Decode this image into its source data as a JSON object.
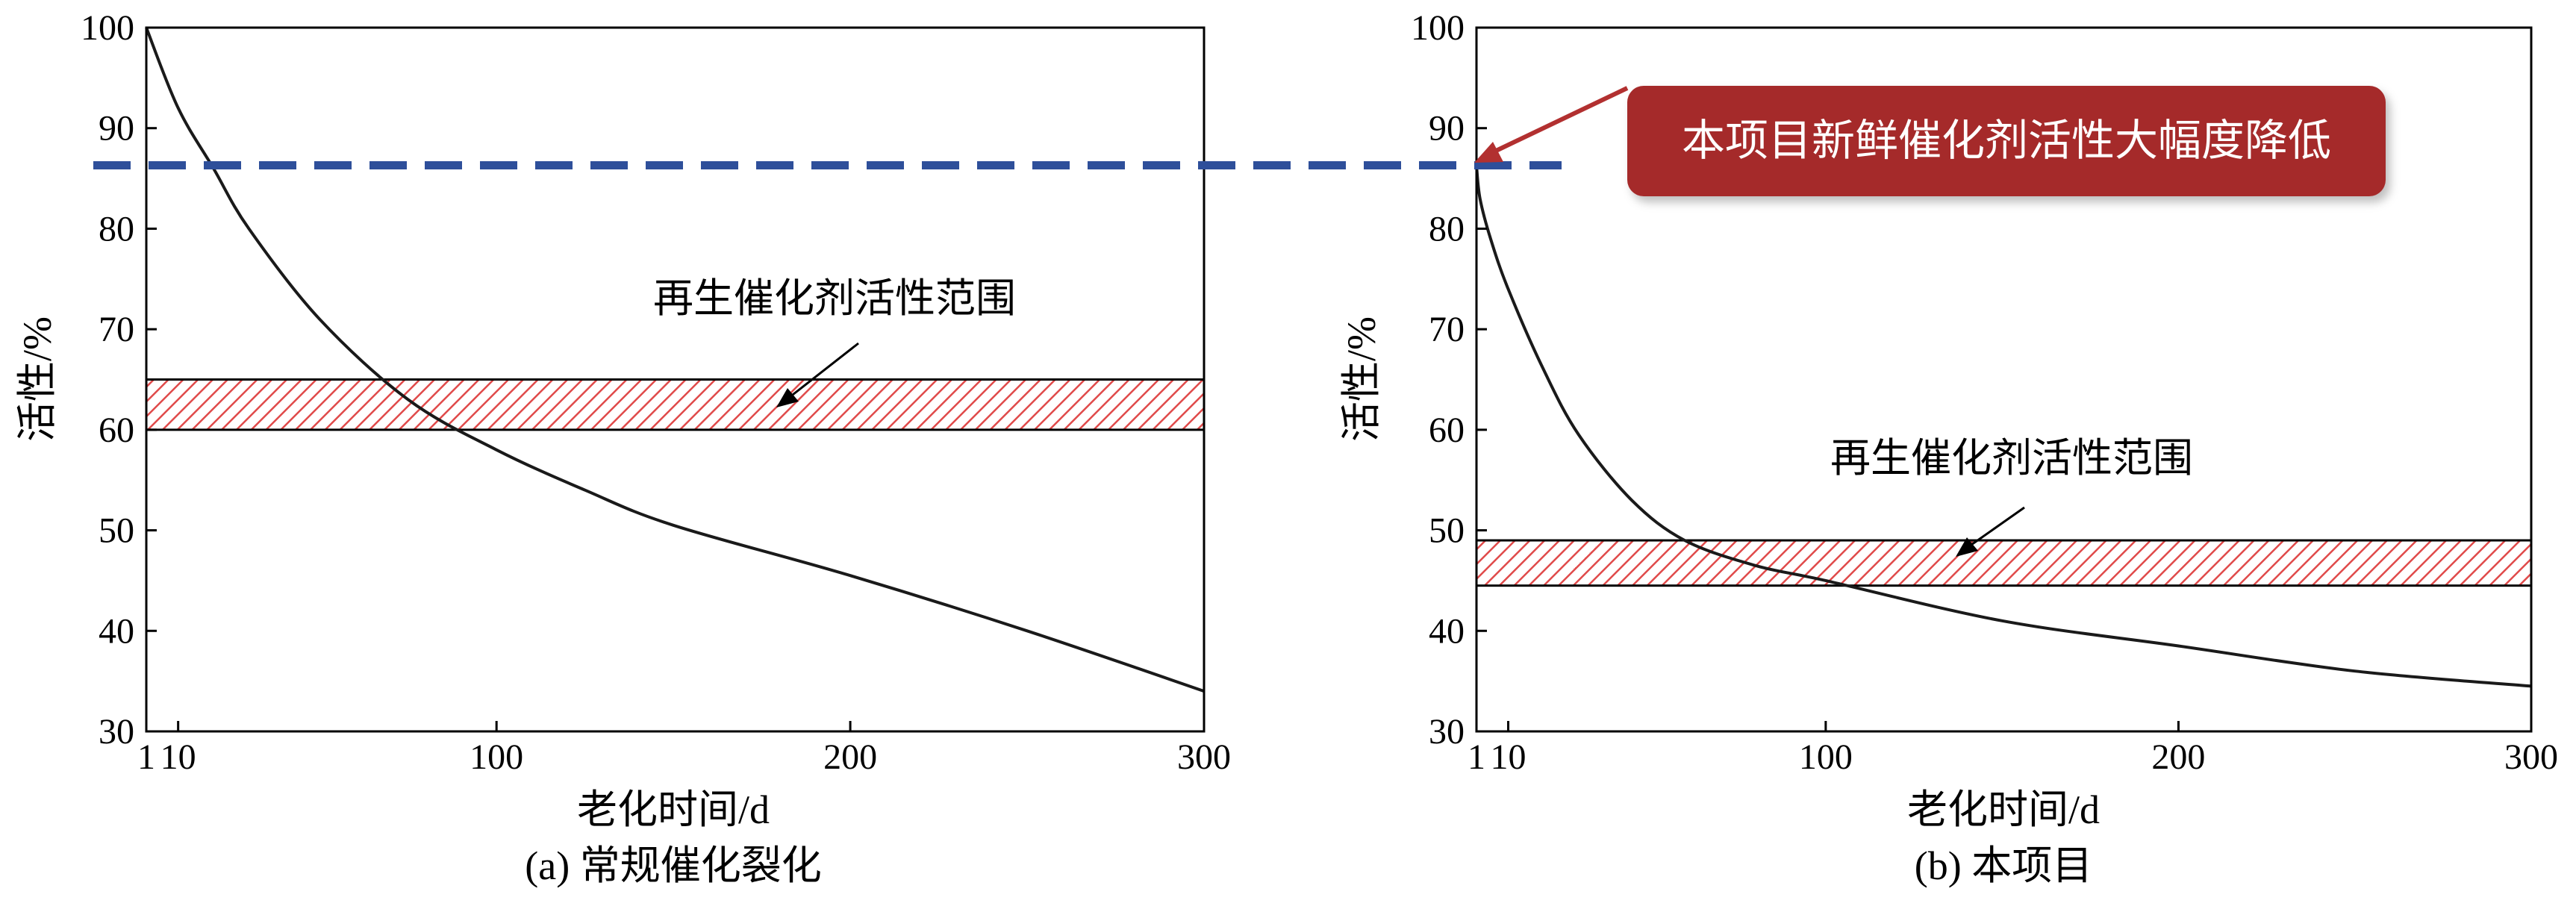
{
  "chart_data": [
    {
      "type": "line",
      "caption": "(a) 常规催化裂化",
      "xlabel": "老化时间/d",
      "ylabel": "活性/%",
      "xlim": [
        1,
        300
      ],
      "ylim": [
        30,
        100
      ],
      "xticks": [
        1,
        10,
        100,
        200,
        300
      ],
      "yticks": [
        30,
        40,
        50,
        60,
        70,
        80,
        90,
        100
      ],
      "grid": false,
      "series": [
        {
          "x": [
            1,
            10,
            20,
            30,
            50,
            75,
            100,
            125,
            150,
            200,
            250,
            300
          ],
          "y": [
            100,
            92,
            86,
            80,
            71,
            63,
            58,
            54,
            50.5,
            45.5,
            40,
            34
          ]
        }
      ],
      "band": {
        "label": "再生催化剂活性范围",
        "y": [
          60,
          65
        ]
      },
      "reference_line": {
        "y": 86.3
      }
    },
    {
      "type": "line",
      "caption": "(b) 本项目",
      "xlabel": "老化时间/d",
      "ylabel": "活性/%",
      "xlim": [
        1,
        300
      ],
      "ylim": [
        30,
        100
      ],
      "xticks": [
        1,
        10,
        100,
        200,
        300
      ],
      "yticks": [
        30,
        40,
        50,
        60,
        70,
        80,
        90,
        100
      ],
      "grid": false,
      "series": [
        {
          "x": [
            1,
            2,
            5,
            10,
            20,
            30,
            45,
            60,
            80,
            100,
            150,
            200,
            250,
            300
          ],
          "y": [
            86.3,
            83,
            79,
            74,
            66,
            59.5,
            53,
            49,
            46.5,
            45,
            41,
            38.5,
            36,
            34.5
          ]
        }
      ],
      "band": {
        "label": "再生催化剂活性范围",
        "y": [
          44.5,
          49
        ]
      },
      "reference_line": {
        "y": 86.3
      },
      "callout": "本项目新鲜催化剂活性大幅度降低"
    }
  ],
  "colors": {
    "curve": "#1a1a1a",
    "band_hatch": "#e04a4a",
    "reference_line": "#2e4f9a",
    "callout_bg": "#a52b2b",
    "callout_arrow": "#b23030"
  }
}
